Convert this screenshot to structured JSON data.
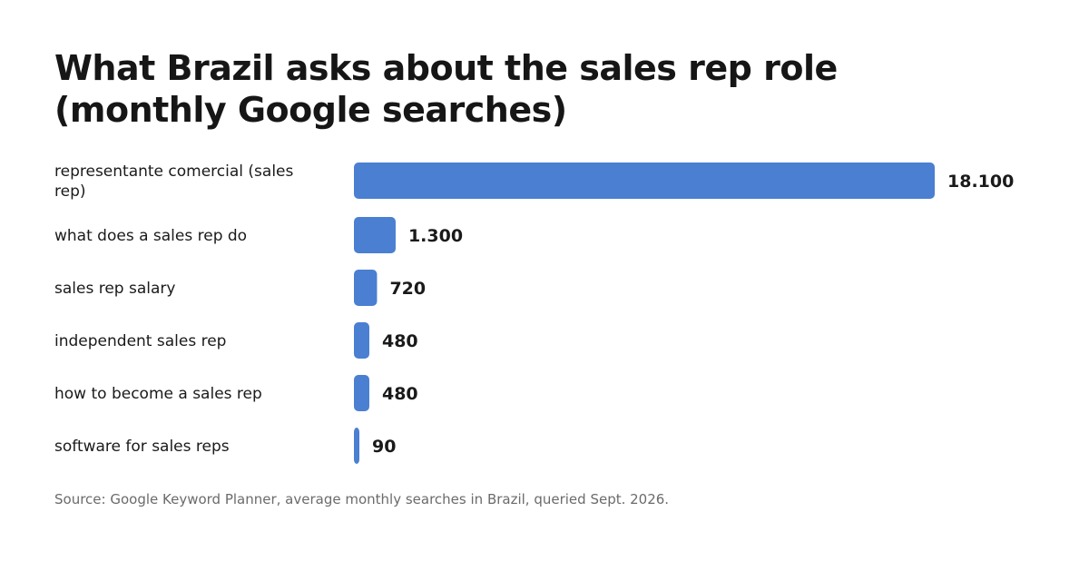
{
  "chart_data": {
    "type": "bar",
    "orientation": "horizontal",
    "title": "What Brazil asks about the sales rep role (monthly Google searches)",
    "categories": [
      "representante comercial (sales rep)",
      "what does a sales rep do",
      "sales rep salary",
      "independent sales rep",
      "how to become a sales rep",
      "software for sales reps"
    ],
    "values": [
      18100,
      1300,
      720,
      480,
      480,
      90
    ],
    "value_labels": [
      "18.100",
      "1.300",
      "720",
      "480",
      "480",
      "90"
    ],
    "xlabel": "",
    "ylabel": "",
    "xlim": [
      0,
      18100
    ],
    "grid": false,
    "legend": "none",
    "bar_color": "#4a7fd1",
    "source": "Source: Google Keyword Planner, average monthly searches in Brazil, queried Sept. 2026."
  }
}
